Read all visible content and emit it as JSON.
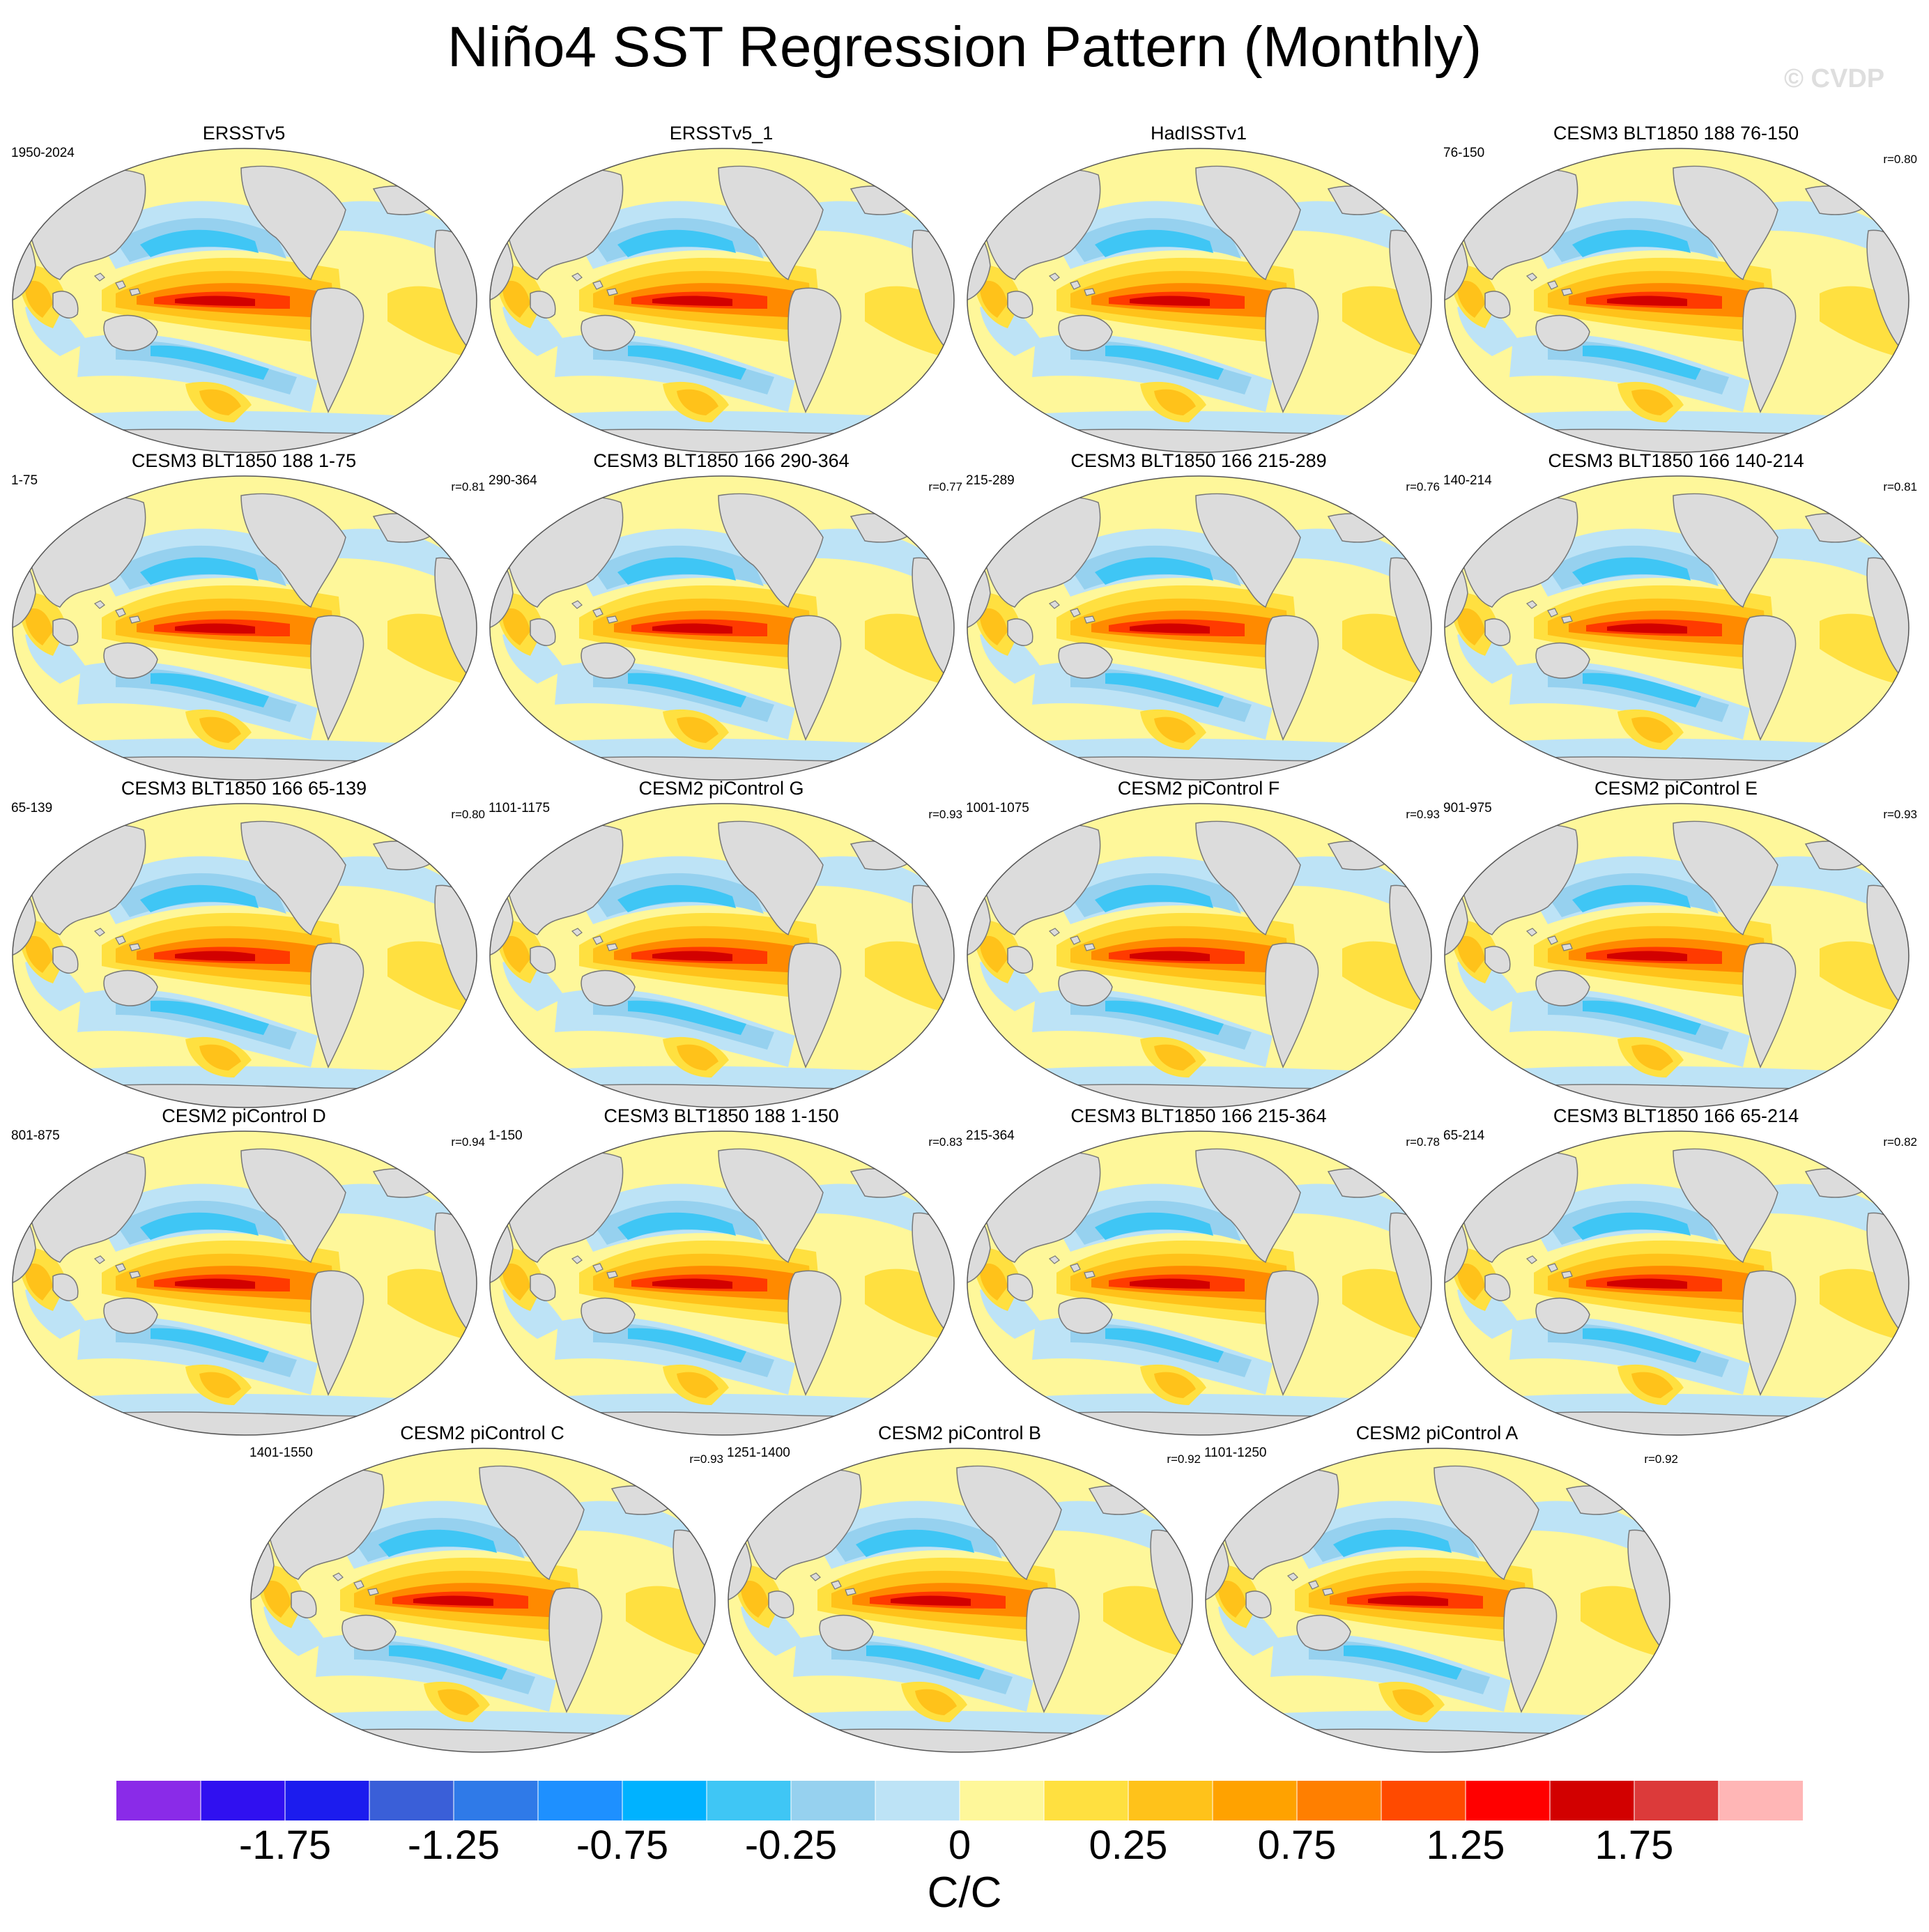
{
  "title": "Niño4 SST Regression Pattern (Monthly)",
  "watermark": "© CVDP",
  "panels": [
    {
      "title": "ERSSTv5",
      "years": "1950-2024",
      "corr": ""
    },
    {
      "title": "ERSSTv5_1",
      "years": "",
      "corr": ""
    },
    {
      "title": "HadISSTv1",
      "years": "",
      "corr": ""
    },
    {
      "title": "CESM3 BLT1850 188 76-150",
      "years": "76-150",
      "corr": "r=0.80"
    },
    {
      "title": "CESM3 BLT1850 188 1-75",
      "years": "1-75",
      "corr": "r=0.81"
    },
    {
      "title": "CESM3 BLT1850 166 290-364",
      "years": "290-364",
      "corr": "r=0.77"
    },
    {
      "title": "CESM3 BLT1850 166 215-289",
      "years": "215-289",
      "corr": "r=0.76"
    },
    {
      "title": "CESM3 BLT1850 166 140-214",
      "years": "140-214",
      "corr": "r=0.81"
    },
    {
      "title": "CESM3 BLT1850 166 65-139",
      "years": "65-139",
      "corr": "r=0.80"
    },
    {
      "title": "CESM2 piControl G",
      "years": "1101-1175",
      "corr": "r=0.93"
    },
    {
      "title": "CESM2 piControl F",
      "years": "1001-1075",
      "corr": "r=0.93"
    },
    {
      "title": "CESM2 piControl E",
      "years": "901-975",
      "corr": "r=0.93"
    },
    {
      "title": "CESM2 piControl D",
      "years": "801-875",
      "corr": "r=0.94"
    },
    {
      "title": "CESM3 BLT1850 188 1-150",
      "years": "1-150",
      "corr": "r=0.83"
    },
    {
      "title": "CESM3 BLT1850 166 215-364",
      "years": "215-364",
      "corr": "r=0.78"
    },
    {
      "title": "CESM3 BLT1850 166 65-214",
      "years": "65-214",
      "corr": "r=0.82"
    },
    {
      "title": "CESM2 piControl C",
      "years": "1401-1550",
      "corr": "r=0.93"
    },
    {
      "title": "CESM2 piControl B",
      "years": "1251-1400",
      "corr": "r=0.92"
    },
    {
      "title": "CESM2 piControl A",
      "years": "1101-1250",
      "corr": "r=0.92"
    }
  ],
  "colorbar": {
    "colors": [
      "#8a2be8",
      "#3010f0",
      "#1c1cee",
      "#3a5fd8",
      "#2f7ae8",
      "#1e90ff",
      "#00b2ff",
      "#3fc6f5",
      "#96d1ef",
      "#bde3f6",
      "#fef79a",
      "#ffe040",
      "#ffc21a",
      "#ffa200",
      "#ff7f00",
      "#ff4a00",
      "#ff0000",
      "#d20000",
      "#dc3a3a",
      "#ffb6b6"
    ],
    "tick_labels": [
      "-1.75",
      "-1.25",
      "-0.75",
      "-0.25",
      "0",
      "0.25",
      "0.75",
      "1.25",
      "1.75"
    ],
    "units": "C/C"
  },
  "map_colors": {
    "ocean": "#fef79a",
    "land": "#dcdcdc",
    "coast": "#777777",
    "warm1": "#ffe040",
    "warm2": "#ffc21a",
    "warm3": "#ff8a00",
    "warm4": "#ff3a00",
    "warm5": "#d20000",
    "cool1": "#bde3f6",
    "cool2": "#96d1ef",
    "cool3": "#3fc6f5",
    "cool4": "#1e90ff"
  }
}
